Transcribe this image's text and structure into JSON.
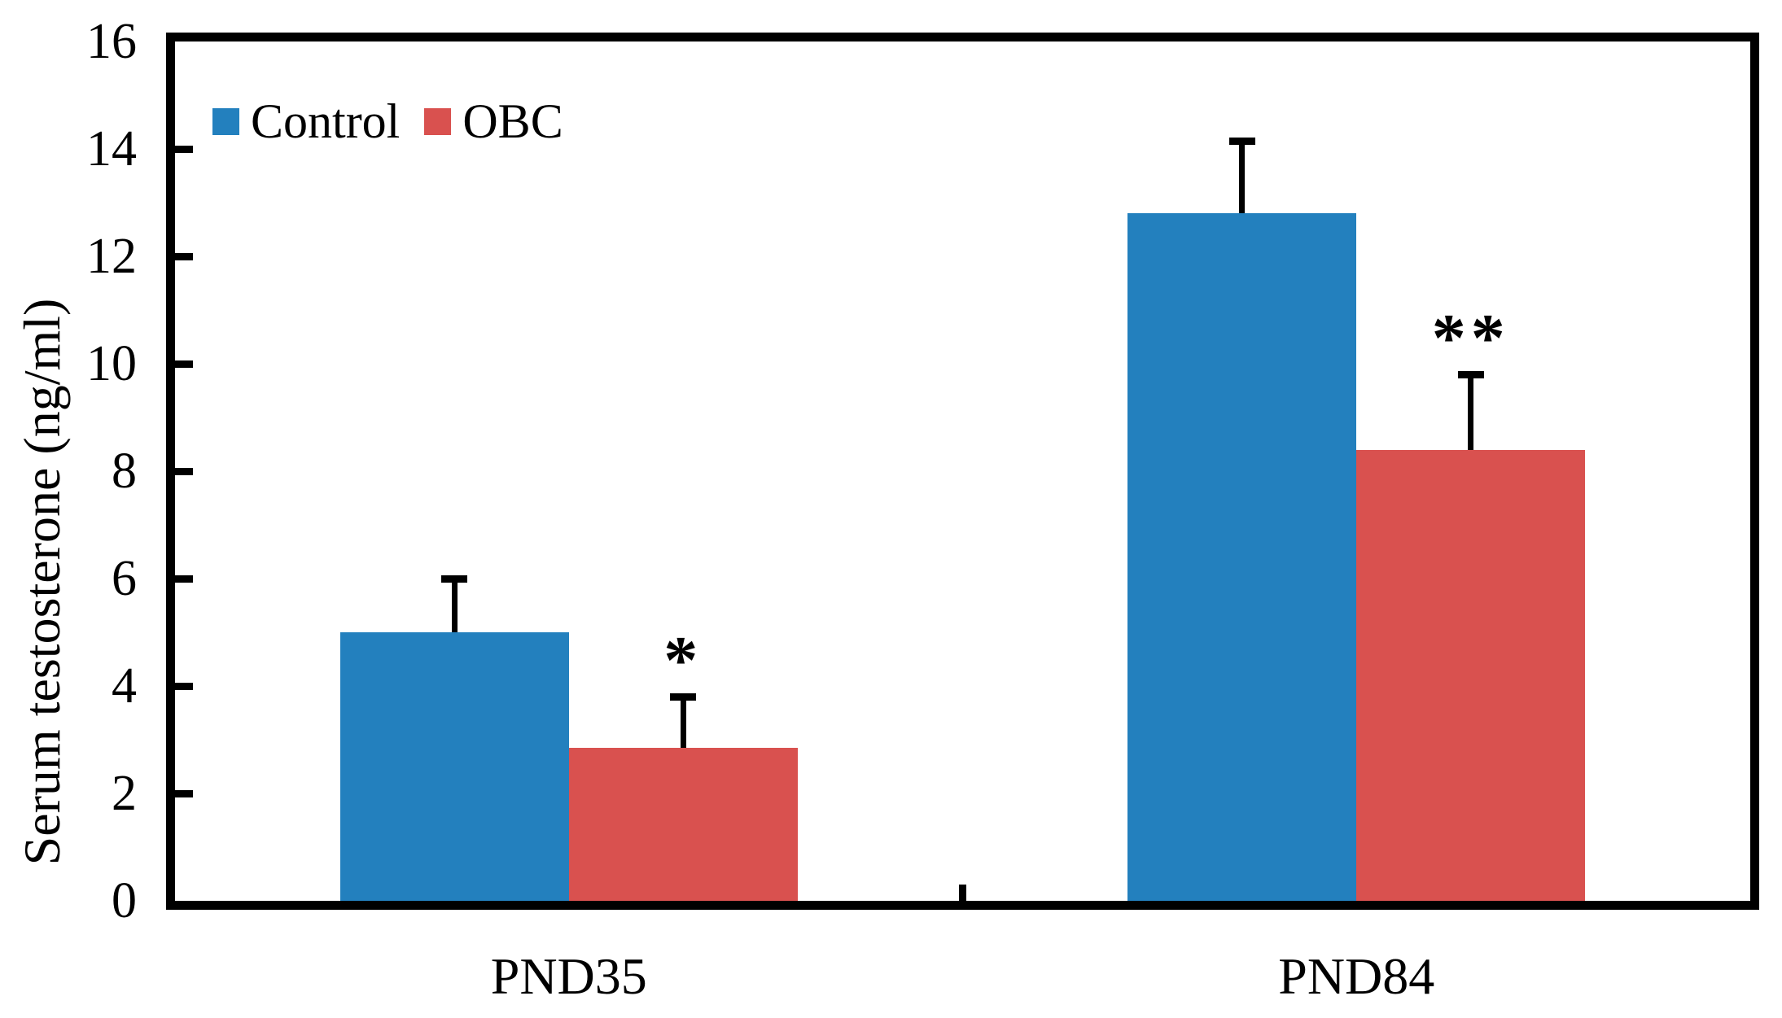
{
  "chart_data": {
    "type": "bar",
    "title": "",
    "xlabel": "",
    "ylabel": "Serum testosterone (ng/ml)",
    "categories": [
      "PND35",
      "PND84"
    ],
    "series": [
      {
        "name": "Control",
        "color": "#2380BE",
        "values": [
          5.0,
          12.8
        ],
        "errors_plus": [
          1.0,
          1.35
        ]
      },
      {
        "name": "OBC",
        "color": "#D9514F",
        "values": [
          2.85,
          8.4
        ],
        "errors_plus": [
          0.95,
          1.4
        ]
      }
    ],
    "annotations": [
      {
        "text": "*",
        "category": "PND35",
        "series": "OBC",
        "meaning": "significance marker above error bar"
      },
      {
        "text": "**",
        "category": "PND84",
        "series": "OBC",
        "meaning": "significance marker above error bar"
      }
    ],
    "ylim": [
      0,
      16
    ],
    "yticks": [
      0,
      2,
      4,
      6,
      8,
      10,
      12,
      14,
      16
    ],
    "grid": false,
    "error_bars": "upper-only",
    "legend_position": "top-left-inside",
    "frame": "full black border box",
    "axis_color": "#000000"
  }
}
